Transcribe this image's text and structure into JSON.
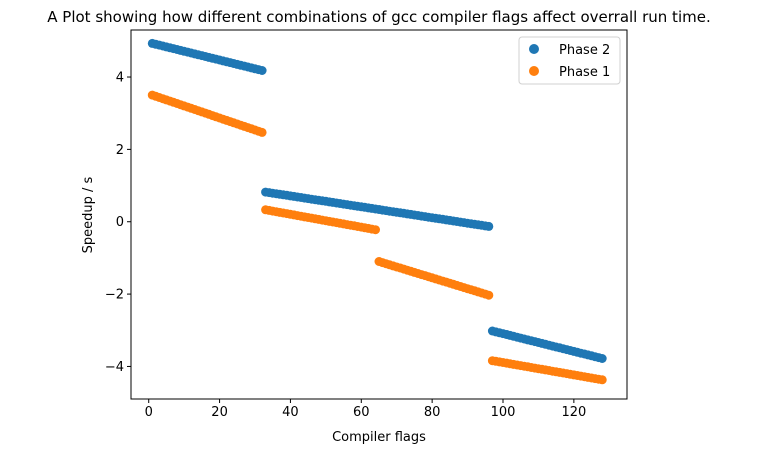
{
  "chart_data": {
    "type": "scatter",
    "title": "A Plot showing how different combinations of gcc compiler flags affect overrall run time.",
    "xlabel": "Compiler flags",
    "ylabel": "Speedup / s",
    "xlim": [
      -5,
      135
    ],
    "ylim": [
      -4.9,
      5.3
    ],
    "xticks": [
      0,
      20,
      40,
      60,
      80,
      100,
      120
    ],
    "yticks": [
      -4,
      -2,
      0,
      2,
      4
    ],
    "xtick_labels": [
      "0",
      "20",
      "40",
      "60",
      "80",
      "100",
      "120"
    ],
    "ytick_labels": [
      "−4",
      "−2",
      "0",
      "2",
      "4"
    ],
    "grid": false,
    "legend_position": "top-right",
    "series": [
      {
        "name": "Phase 2",
        "color": "#1f77b4",
        "segments": [
          {
            "x_start": 1,
            "x_end": 32,
            "y_start": 4.93,
            "y_end": 4.18
          },
          {
            "x_start": 33,
            "x_end": 96,
            "y_start": 0.82,
            "y_end": -0.13
          },
          {
            "x_start": 97,
            "x_end": 128,
            "y_start": -3.02,
            "y_end": -3.78
          }
        ]
      },
      {
        "name": "Phase 1",
        "color": "#ff7f0e",
        "segments": [
          {
            "x_start": 1,
            "x_end": 32,
            "y_start": 3.5,
            "y_end": 2.47
          },
          {
            "x_start": 33,
            "x_end": 64,
            "y_start": 0.33,
            "y_end": -0.22
          },
          {
            "x_start": 65,
            "x_end": 96,
            "y_start": -1.1,
            "y_end": -2.03
          },
          {
            "x_start": 97,
            "x_end": 128,
            "y_start": -3.84,
            "y_end": -4.37
          }
        ]
      }
    ]
  }
}
